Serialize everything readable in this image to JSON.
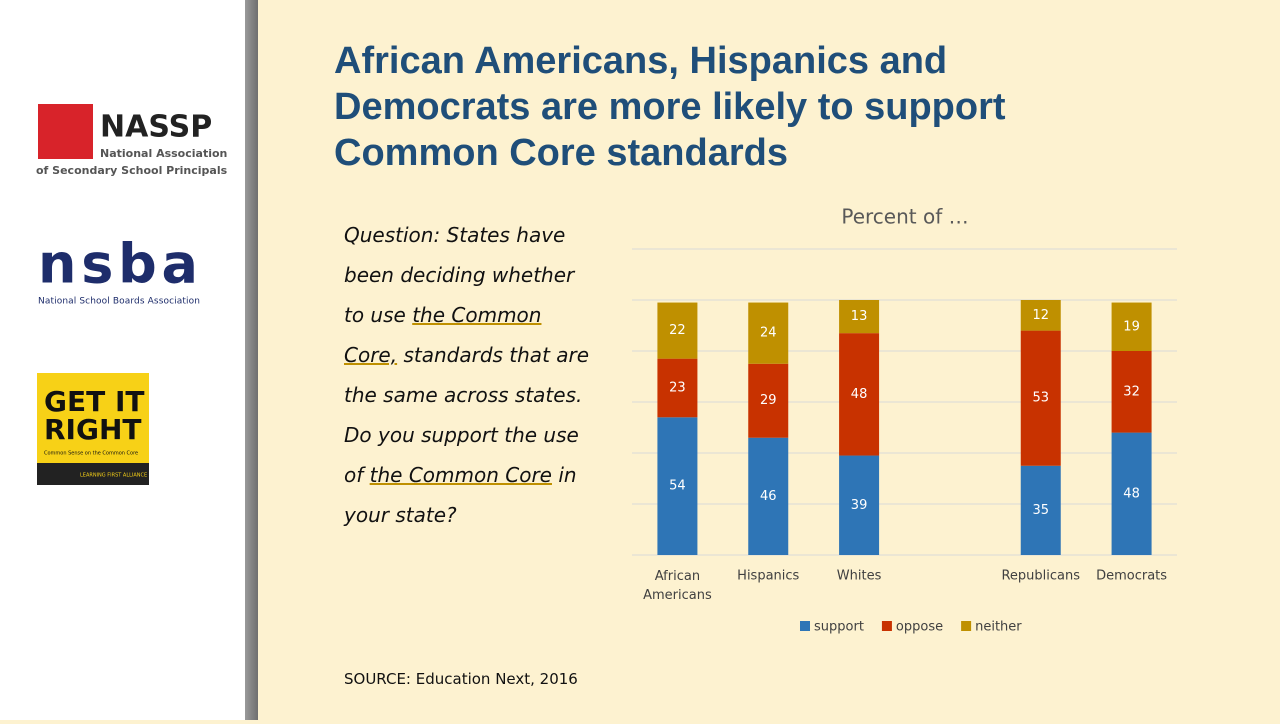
{
  "header": {
    "title": [
      "African Americans, Hispanics and",
      "Democrats are more likely to support",
      "Common Core standards"
    ]
  },
  "logos": {
    "nassp": {
      "name": "NASSP",
      "lines": [
        "National Association",
        "of Secondary School Principals"
      ]
    },
    "nsba": {
      "name": "nsba",
      "line": "National School Boards Association"
    },
    "getitright": {
      "lines": [
        "GET IT",
        "RIGHT"
      ],
      "tagline": "Common Sense on the Common Core",
      "alliance": "LEARNING FIRST ALLIANCE"
    }
  },
  "question": [
    {
      "text": "Question: States have been deciding whether to use "
    },
    {
      "text": "the Common Core,",
      "underline": true
    },
    {
      "text": " standards that are the same across states. Do you support the use of "
    },
    {
      "text": "the Common Core",
      "underline": true
    },
    {
      "text": " in your state?"
    }
  ],
  "source": "SOURCE: Education Next, 2016",
  "chart_data": {
    "type": "stacked_bar",
    "title": "Percent of …",
    "categories": [
      "African Americans",
      "Hispanics",
      "Whites",
      null,
      "Republicans",
      "Democrats"
    ],
    "series": [
      {
        "name": "support",
        "color": "#2e75b6",
        "values": [
          54,
          46,
          39,
          null,
          35,
          48
        ]
      },
      {
        "name": "oppose",
        "color": "#c83200",
        "values": [
          23,
          29,
          48,
          null,
          53,
          32
        ]
      },
      {
        "name": "neither",
        "color": "#bf9000",
        "values": [
          22,
          24,
          13,
          null,
          12,
          19
        ]
      }
    ],
    "ylim": [
      0,
      120
    ],
    "yticks": [
      0,
      20,
      40,
      60,
      80,
      100,
      120
    ],
    "grid": true,
    "legend": "bottom"
  }
}
